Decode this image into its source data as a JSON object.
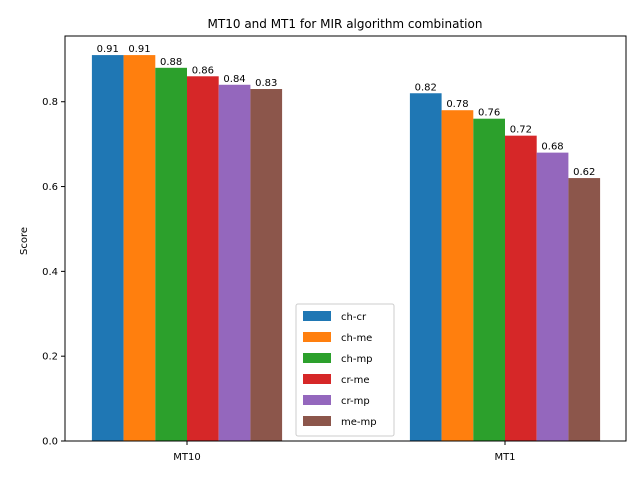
{
  "chart_data": {
    "type": "bar",
    "title": "MT10 and MT1 for MIR algorithm combination",
    "xlabel": "",
    "ylabel": "Score",
    "categories": [
      "MT10",
      "MT1"
    ],
    "ylim": [
      0,
      0.955
    ],
    "yticks": [
      "0.0",
      "0.2",
      "0.4",
      "0.6",
      "0.8"
    ],
    "grid": false,
    "legend_position": "bottom-center",
    "series": [
      {
        "name": "ch-cr",
        "color": "#1f77b4",
        "values": [
          0.91,
          0.82
        ]
      },
      {
        "name": "ch-me",
        "color": "#ff7f0e",
        "values": [
          0.91,
          0.78
        ]
      },
      {
        "name": "ch-mp",
        "color": "#2ca02c",
        "values": [
          0.88,
          0.76
        ]
      },
      {
        "name": "cr-me",
        "color": "#d62728",
        "values": [
          0.86,
          0.72
        ]
      },
      {
        "name": "cr-mp",
        "color": "#9467bd",
        "values": [
          0.84,
          0.68
        ]
      },
      {
        "name": "me-mp",
        "color": "#8c564b",
        "values": [
          0.83,
          0.62
        ]
      }
    ]
  }
}
